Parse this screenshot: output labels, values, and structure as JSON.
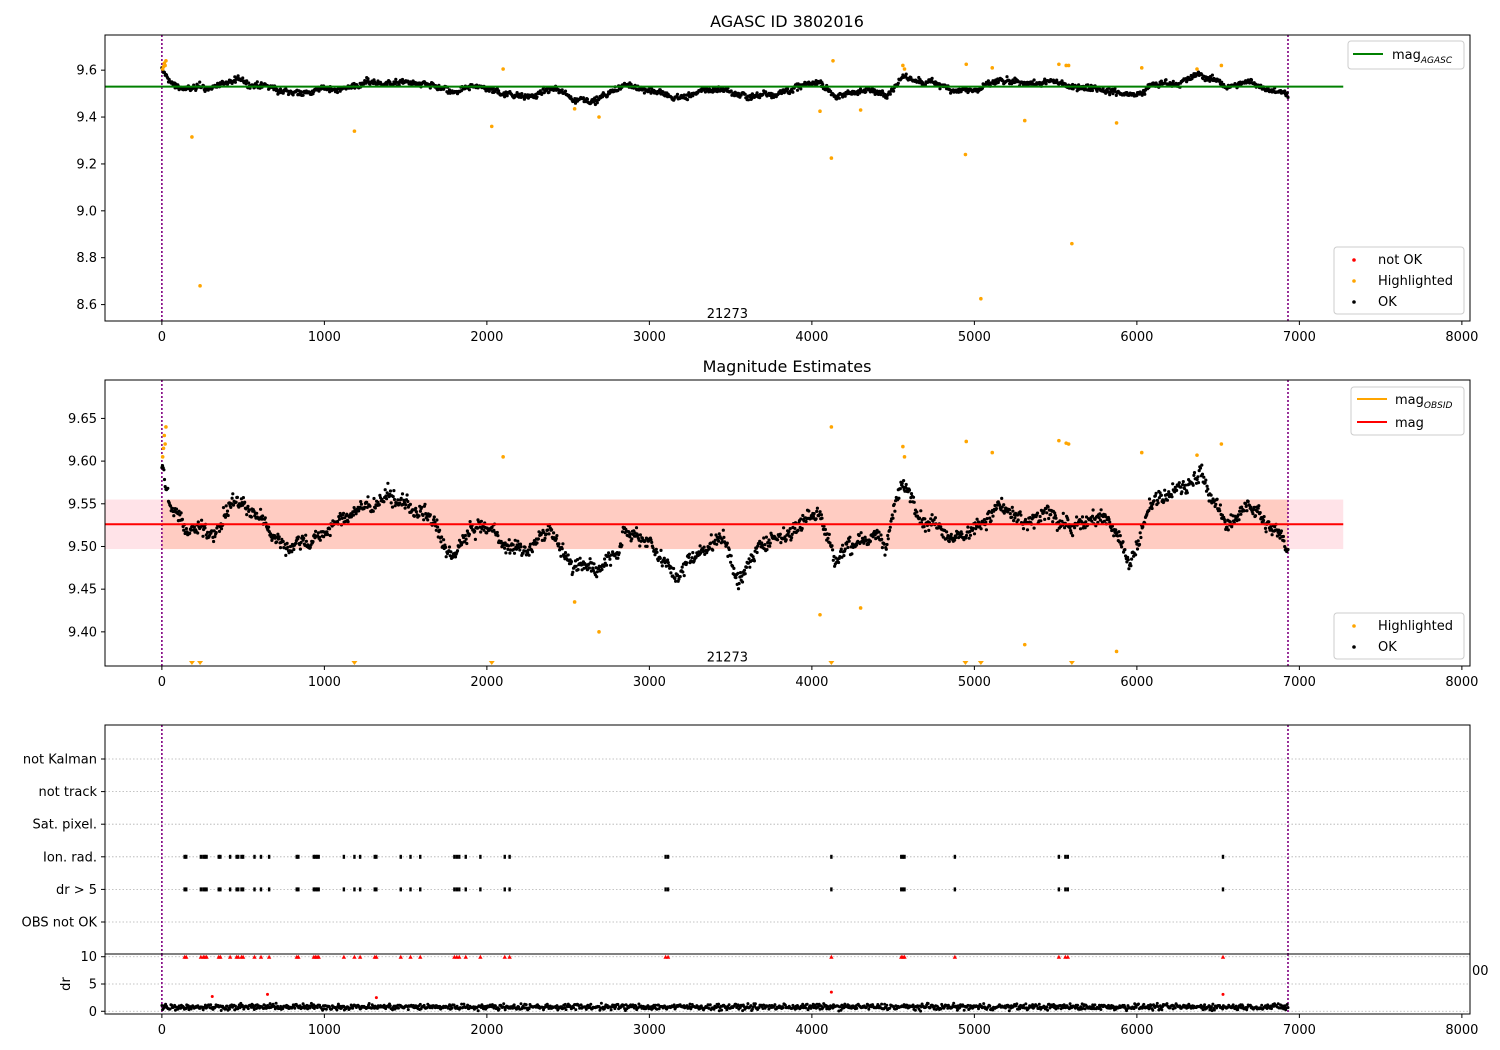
{
  "figure": {
    "panel1_title": "AGASC ID 3802016",
    "panel2_title": "Magnitude Estimates",
    "obsid_label": "21273",
    "bottom_right_clipped_tick": "00"
  },
  "colors": {
    "ok": "#000000",
    "highlighted": "#ffa500",
    "not_ok": "#ff0000",
    "mag_agasc_line": "#008000",
    "mag_obsid_line": "#ffa500",
    "mag_line": "#ff0000",
    "band_fill": "#ffc0cb",
    "band_fill_inner": "#ffa07a",
    "vline": "#800080",
    "grid": "#b0b0b0"
  },
  "chart_data": [
    {
      "type": "scatter",
      "title": "AGASC ID 3802016",
      "xlim": [
        -350,
        8050
      ],
      "ylim": [
        8.53,
        9.75
      ],
      "x_ticks": [
        0,
        1000,
        2000,
        3000,
        4000,
        5000,
        6000,
        7000,
        8000
      ],
      "y_ticks": [
        8.6,
        8.8,
        9.0,
        9.2,
        9.4,
        9.6
      ],
      "y_tick_labels": [
        "8.6",
        "8.8",
        "9.0",
        "9.2",
        "9.4",
        "9.6"
      ],
      "vlines": [
        0,
        6930
      ],
      "hlines": [
        {
          "name": "mag_AGASC",
          "y": 9.53,
          "x": [
            -350,
            7270
          ]
        }
      ],
      "text_annotation": {
        "text": "21273",
        "x": 3480,
        "y": 8.56
      },
      "legends": [
        {
          "position": "upper right",
          "entries": [
            {
              "label": "mag",
              "subscript": "AGASC",
              "kind": "line"
            }
          ]
        },
        {
          "position": "lower right",
          "entries": [
            {
              "label": "not OK",
              "kind": "point"
            },
            {
              "label": "Highlighted",
              "kind": "point"
            },
            {
              "label": "OK",
              "kind": "point"
            }
          ]
        }
      ],
      "series": [
        {
          "name": "OK",
          "trend": {
            "x": [
              0,
              60,
              150,
              300,
              450,
              600,
              750,
              900,
              1050,
              1200,
              1350,
              1500,
              1650,
              1800,
              1950,
              2100,
              2250,
              2400,
              2550,
              2700,
              2850,
              3000,
              3150,
              3300,
              3450,
              3600,
              3750,
              3900,
              4050,
              4150,
              4300,
              4450,
              4550,
              4700,
              4850,
              5000,
              5150,
              5300,
              5450,
              5600,
              5750,
              5850,
              5950,
              6100,
              6250,
              6400,
              6550,
              6700,
              6930
            ],
            "y": [
              9.6,
              9.54,
              9.52,
              9.52,
              9.56,
              9.53,
              9.5,
              9.51,
              9.52,
              9.54,
              9.55,
              9.55,
              9.53,
              9.49,
              9.52,
              9.5,
              9.5,
              9.52,
              9.48,
              9.49,
              9.53,
              9.52,
              9.48,
              9.5,
              9.52,
              9.49,
              9.51,
              9.53,
              9.55,
              9.49,
              9.52,
              9.5,
              9.57,
              9.54,
              9.53,
              9.52,
              9.55,
              9.52,
              9.54,
              9.53,
              9.54,
              9.52,
              9.5,
              9.55,
              9.56,
              9.58,
              9.53,
              9.55,
              9.5
            ]
          },
          "spread": 0.05
        },
        {
          "name": "Highlighted",
          "x": [
            5,
            10,
            15,
            20,
            25,
            185,
            235,
            1185,
            2030,
            2100,
            2540,
            2690,
            4050,
            4120,
            4130,
            4300,
            4560,
            4570,
            4945,
            4950,
            5040,
            5110,
            5310,
            5520,
            5565,
            5580,
            5600,
            5875,
            6030,
            6370,
            6520
          ],
          "y": [
            9.605,
            9.615,
            9.63,
            9.62,
            9.64,
            9.315,
            8.68,
            9.34,
            9.36,
            9.605,
            9.435,
            9.4,
            9.425,
            9.225,
            9.64,
            9.43,
            9.62,
            9.605,
            9.24,
            9.625,
            8.625,
            9.61,
            9.385,
            9.625,
            9.62,
            9.62,
            8.86,
            9.375,
            9.61,
            9.605,
            9.62
          ]
        },
        {
          "name": "not OK",
          "x": [],
          "y": []
        }
      ]
    },
    {
      "type": "scatter",
      "title": "Magnitude Estimates",
      "xlim": [
        -350,
        8050
      ],
      "ylim": [
        9.36,
        9.695
      ],
      "x_ticks": [
        0,
        1000,
        2000,
        3000,
        4000,
        5000,
        6000,
        7000,
        8000
      ],
      "y_ticks": [
        9.4,
        9.45,
        9.5,
        9.55,
        9.6,
        9.65
      ],
      "y_tick_labels": [
        "9.40",
        "9.45",
        "9.50",
        "9.55",
        "9.60",
        "9.65"
      ],
      "vlines": [
        0,
        6930
      ],
      "band": {
        "x": [
          -350,
          7270
        ],
        "y": [
          9.497,
          9.555
        ]
      },
      "hlines": [
        {
          "name": "mag",
          "y": 9.526,
          "x": [
            -350,
            7270
          ]
        }
      ],
      "text_annotation": {
        "text": "21273",
        "x": 3480,
        "y": 9.37
      },
      "legends": [
        {
          "position": "upper right",
          "entries": [
            {
              "label": "mag",
              "subscript": "OBSID",
              "kind": "line"
            },
            {
              "label": "mag",
              "kind": "line"
            }
          ]
        },
        {
          "position": "lower right",
          "entries": [
            {
              "label": "Highlighted",
              "kind": "point"
            },
            {
              "label": "OK",
              "kind": "point"
            }
          ]
        }
      ],
      "series": [
        {
          "name": "OK",
          "trend": {
            "x": [
              0,
              60,
              150,
              300,
              450,
              600,
              750,
              900,
              1050,
              1200,
              1350,
              1500,
              1650,
              1750,
              1950,
              2100,
              2250,
              2400,
              2550,
              2700,
              2850,
              3000,
              3150,
              3300,
              3450,
              3550,
              3750,
              3900,
              4050,
              4150,
              4300,
              4450,
              4550,
              4700,
              4850,
              5000,
              5150,
              5300,
              5450,
              5600,
              5750,
              5850,
              5950,
              6100,
              6250,
              6400,
              6550,
              6700,
              6930
            ],
            "y": [
              9.6,
              9.54,
              9.52,
              9.52,
              9.56,
              9.53,
              9.5,
              9.51,
              9.52,
              9.54,
              9.55,
              9.55,
              9.53,
              9.48,
              9.52,
              9.5,
              9.5,
              9.52,
              9.47,
              9.48,
              9.53,
              9.52,
              9.47,
              9.5,
              9.52,
              9.47,
              9.51,
              9.53,
              9.55,
              9.49,
              9.52,
              9.5,
              9.57,
              9.54,
              9.53,
              9.52,
              9.55,
              9.52,
              9.54,
              9.53,
              9.54,
              9.52,
              9.48,
              9.55,
              9.56,
              9.58,
              9.52,
              9.55,
              9.5
            ]
          },
          "spread": 0.035
        },
        {
          "name": "Highlighted",
          "x": [
            5,
            10,
            15,
            20,
            25,
            2100,
            2540,
            2690,
            4050,
            4120,
            4300,
            4560,
            4570,
            4950,
            5110,
            5310,
            5520,
            5565,
            5580,
            5875,
            6030,
            6370,
            6520
          ],
          "y": [
            9.605,
            9.615,
            9.63,
            9.62,
            9.64,
            9.605,
            9.435,
            9.4,
            9.42,
            9.64,
            9.428,
            9.617,
            9.605,
            9.623,
            9.61,
            9.385,
            9.624,
            9.621,
            9.62,
            9.377,
            9.61,
            9.607,
            9.62
          ]
        },
        {
          "name": "Highlighted (below axis)",
          "x": [
            185,
            235,
            1185,
            2030,
            4120,
            4945,
            5040,
            5600
          ]
        }
      ]
    },
    {
      "type": "scatter",
      "title": "",
      "xlim": [
        -350,
        8050
      ],
      "categories": [
        "OBS not OK",
        "dr > 5",
        "Ion. rad.",
        "Sat. pixel.",
        "not track",
        "not Kalman"
      ],
      "vlines": [
        0,
        6930
      ],
      "series": [
        {
          "name": "dr > 5",
          "x": [
            140,
            150,
            240,
            255,
            265,
            275,
            350,
            360,
            420,
            460,
            470,
            490,
            500,
            570,
            610,
            660,
            830,
            840,
            935,
            945,
            955,
            965,
            1120,
            1185,
            1220,
            1310,
            1320,
            1470,
            1530,
            1590,
            1800,
            1815,
            1830,
            1870,
            1960,
            2110,
            2140,
            3100,
            3115,
            4120,
            4550,
            4560,
            4570,
            4880,
            5520,
            5560,
            5575,
            6530
          ]
        },
        {
          "name": "Ion. rad.",
          "x": [
            140,
            150,
            240,
            255,
            265,
            275,
            350,
            360,
            420,
            460,
            470,
            490,
            500,
            570,
            610,
            660,
            830,
            840,
            935,
            945,
            955,
            965,
            1120,
            1185,
            1220,
            1310,
            1320,
            1470,
            1530,
            1590,
            1800,
            1815,
            1830,
            1870,
            1960,
            2110,
            2140,
            3100,
            3115,
            4120,
            4550,
            4560,
            4570,
            4880,
            5520,
            5560,
            5575,
            6530
          ]
        }
      ]
    },
    {
      "type": "scatter",
      "title": "",
      "ylabel": "dr",
      "xlim": [
        -350,
        8050
      ],
      "ylim": [
        -0.5,
        10.5
      ],
      "x_ticks": [
        0,
        1000,
        2000,
        3000,
        4000,
        5000,
        6000,
        7000,
        8000
      ],
      "y_ticks": [
        0,
        5,
        10
      ],
      "vlines": [
        0,
        6930
      ],
      "series": [
        {
          "name": "dr",
          "trend": {
            "x": [
              0,
              6930
            ],
            "y": [
              0.8,
              0.8
            ]
          },
          "spread": 0.8
        },
        {
          "name": "dr > 5 (clipped at 10)",
          "x": [
            140,
            150,
            240,
            255,
            265,
            275,
            350,
            360,
            420,
            460,
            470,
            490,
            500,
            570,
            610,
            660,
            830,
            840,
            935,
            945,
            955,
            965,
            1120,
            1185,
            1220,
            1310,
            1320,
            1470,
            1530,
            1590,
            1800,
            1815,
            1830,
            1870,
            1960,
            2110,
            2140,
            3100,
            3115,
            4120,
            4550,
            4560,
            4570,
            4880,
            5520,
            5560,
            5575,
            6530
          ],
          "y": 10
        },
        {
          "name": "dr outliers",
          "x": [
            310,
            650,
            1320,
            4120,
            6530
          ],
          "y": [
            2.7,
            3.1,
            2.5,
            3.5,
            3.1
          ]
        }
      ]
    }
  ]
}
